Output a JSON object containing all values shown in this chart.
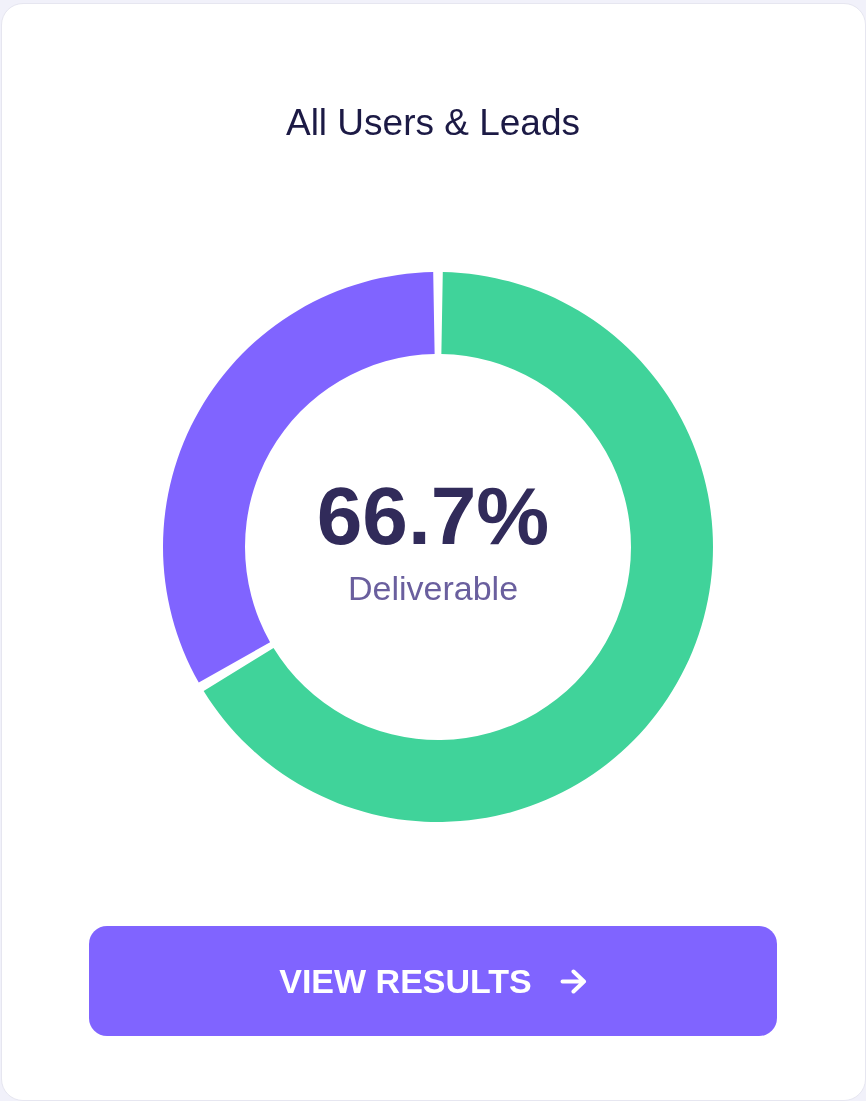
{
  "chart_data": {
    "type": "donut",
    "title": "All Users & Leads",
    "categories": [
      "Deliverable",
      null
    ],
    "values": [
      66.7,
      33.3
    ],
    "colors": [
      "#40d39a",
      "#8064ff"
    ],
    "value_labels": [
      "66.7%",
      null
    ],
    "annotations": [
      "VIEW RESULTS"
    ]
  }
}
